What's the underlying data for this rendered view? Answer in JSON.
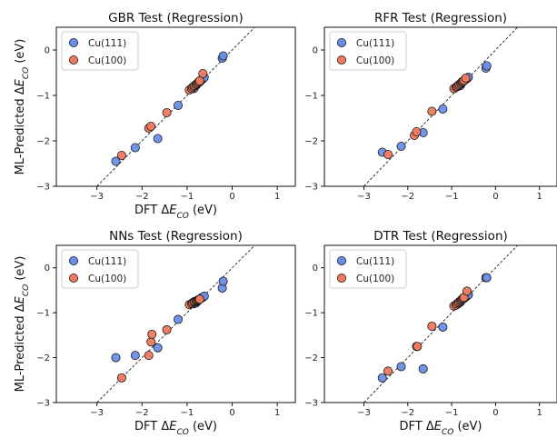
{
  "chart_data": [
    {
      "type": "scatter",
      "title": "GBR Test (Regression)",
      "xlabel": "DFT ΔE_CO (eV)",
      "ylabel": "ML-Predicted ΔE_CO (eV)",
      "xlim": [
        -3.9,
        1.4
      ],
      "ylim": [
        -3.0,
        0.5
      ],
      "xticks": [
        -3,
        -2,
        -1,
        0,
        1
      ],
      "yticks": [
        -3,
        -2,
        -1,
        0
      ],
      "legend": "top-left",
      "parity_line": true,
      "series": [
        {
          "name": "Cu(111)",
          "color": "#6a8ee8",
          "points": [
            [
              -2.58,
              -2.45
            ],
            [
              -2.15,
              -2.15
            ],
            [
              -1.65,
              -1.95
            ],
            [
              -1.2,
              -1.22
            ],
            [
              -0.85,
              -0.85
            ],
            [
              -0.8,
              -0.78
            ],
            [
              -0.78,
              -0.75
            ],
            [
              -0.75,
              -0.72
            ],
            [
              -0.72,
              -0.7
            ],
            [
              -0.7,
              -0.68
            ],
            [
              -0.68,
              -0.66
            ],
            [
              -0.66,
              -0.64
            ],
            [
              -0.64,
              -0.62
            ],
            [
              -0.62,
              -0.6
            ],
            [
              -0.22,
              -0.18
            ],
            [
              -0.2,
              -0.13
            ]
          ]
        },
        {
          "name": "Cu(100)",
          "color": "#f07a5e",
          "points": [
            [
              -2.45,
              -2.32
            ],
            [
              -1.85,
              -1.72
            ],
            [
              -1.8,
              -1.68
            ],
            [
              -1.45,
              -1.38
            ],
            [
              -0.95,
              -0.88
            ],
            [
              -0.9,
              -0.85
            ],
            [
              -0.88,
              -0.82
            ],
            [
              -0.85,
              -0.8
            ],
            [
              -0.83,
              -0.78
            ],
            [
              -0.8,
              -0.76
            ],
            [
              -0.78,
              -0.74
            ],
            [
              -0.76,
              -0.72
            ],
            [
              -0.74,
              -0.7
            ],
            [
              -0.72,
              -0.68
            ],
            [
              -0.65,
              -0.52
            ]
          ]
        }
      ]
    },
    {
      "type": "scatter",
      "title": "RFR Test (Regression)",
      "xlabel": "",
      "ylabel": "",
      "xlim": [
        -3.9,
        1.4
      ],
      "ylim": [
        -3.0,
        0.5
      ],
      "xticks": [
        -3,
        -2,
        -1,
        0,
        1
      ],
      "yticks": [
        -3,
        -2,
        -1,
        0
      ],
      "legend": "top-left",
      "parity_line": true,
      "series": [
        {
          "name": "Cu(111)",
          "color": "#6a8ee8",
          "points": [
            [
              -2.58,
              -2.25
            ],
            [
              -2.15,
              -2.12
            ],
            [
              -1.65,
              -1.82
            ],
            [
              -1.2,
              -1.3
            ],
            [
              -0.85,
              -0.8
            ],
            [
              -0.8,
              -0.78
            ],
            [
              -0.78,
              -0.74
            ],
            [
              -0.75,
              -0.7
            ],
            [
              -0.72,
              -0.68
            ],
            [
              -0.7,
              -0.66
            ],
            [
              -0.68,
              -0.65
            ],
            [
              -0.66,
              -0.63
            ],
            [
              -0.64,
              -0.62
            ],
            [
              -0.62,
              -0.6
            ],
            [
              -0.22,
              -0.4
            ],
            [
              -0.2,
              -0.35
            ]
          ]
        },
        {
          "name": "Cu(100)",
          "color": "#f07a5e",
          "points": [
            [
              -2.45,
              -2.3
            ],
            [
              -1.85,
              -1.88
            ],
            [
              -1.8,
              -1.8
            ],
            [
              -1.45,
              -1.35
            ],
            [
              -0.95,
              -0.85
            ],
            [
              -0.9,
              -0.82
            ],
            [
              -0.88,
              -0.8
            ],
            [
              -0.85,
              -0.78
            ],
            [
              -0.83,
              -0.76
            ],
            [
              -0.8,
              -0.74
            ],
            [
              -0.78,
              -0.72
            ],
            [
              -0.76,
              -0.7
            ],
            [
              -0.74,
              -0.69
            ],
            [
              -0.72,
              -0.67
            ],
            [
              -0.68,
              -0.62
            ]
          ]
        }
      ]
    },
    {
      "type": "scatter",
      "title": "NNs Test (Regression)",
      "xlabel": "DFT ΔE_CO (eV)",
      "ylabel": "ML-Predicted ΔE_CO (eV)",
      "xlim": [
        -3.9,
        1.4
      ],
      "ylim": [
        -3.0,
        0.5
      ],
      "xticks": [
        -3,
        -2,
        -1,
        0,
        1
      ],
      "yticks": [
        -3,
        -2,
        -1,
        0
      ],
      "legend": "top-left",
      "parity_line": true,
      "series": [
        {
          "name": "Cu(111)",
          "color": "#6a8ee8",
          "points": [
            [
              -2.58,
              -2.0
            ],
            [
              -2.15,
              -1.95
            ],
            [
              -1.65,
              -1.78
            ],
            [
              -1.2,
              -1.15
            ],
            [
              -0.85,
              -0.8
            ],
            [
              -0.8,
              -0.78
            ],
            [
              -0.78,
              -0.75
            ],
            [
              -0.75,
              -0.72
            ],
            [
              -0.72,
              -0.7
            ],
            [
              -0.7,
              -0.68
            ],
            [
              -0.68,
              -0.67
            ],
            [
              -0.66,
              -0.66
            ],
            [
              -0.64,
              -0.65
            ],
            [
              -0.62,
              -0.63
            ],
            [
              -0.22,
              -0.45
            ],
            [
              -0.2,
              -0.3
            ]
          ]
        },
        {
          "name": "Cu(100)",
          "color": "#f07a5e",
          "points": [
            [
              -2.45,
              -2.45
            ],
            [
              -1.85,
              -1.95
            ],
            [
              -1.8,
              -1.65
            ],
            [
              -1.78,
              -1.48
            ],
            [
              -1.45,
              -1.38
            ],
            [
              -0.95,
              -0.82
            ],
            [
              -0.9,
              -0.8
            ],
            [
              -0.88,
              -0.78
            ],
            [
              -0.85,
              -0.76
            ],
            [
              -0.83,
              -0.75
            ],
            [
              -0.8,
              -0.74
            ],
            [
              -0.78,
              -0.73
            ],
            [
              -0.76,
              -0.72
            ],
            [
              -0.74,
              -0.71
            ],
            [
              -0.72,
              -0.7
            ]
          ]
        }
      ]
    },
    {
      "type": "scatter",
      "title": "DTR Test (Regression)",
      "xlabel": "DFT ΔE_CO (eV)",
      "ylabel": "",
      "xlim": [
        -3.9,
        1.4
      ],
      "ylim": [
        -3.0,
        0.5
      ],
      "xticks": [
        -3,
        -2,
        -1,
        0,
        1
      ],
      "yticks": [
        -3,
        -2,
        -1,
        0
      ],
      "legend": "top-left",
      "parity_line": true,
      "series": [
        {
          "name": "Cu(111)",
          "color": "#6a8ee8",
          "points": [
            [
              -2.58,
              -2.45
            ],
            [
              -2.15,
              -2.2
            ],
            [
              -1.65,
              -2.25
            ],
            [
              -1.2,
              -1.32
            ],
            [
              -0.85,
              -0.8
            ],
            [
              -0.8,
              -0.76
            ],
            [
              -0.78,
              -0.72
            ],
            [
              -0.75,
              -0.7
            ],
            [
              -0.72,
              -0.68
            ],
            [
              -0.7,
              -0.66
            ],
            [
              -0.68,
              -0.65
            ],
            [
              -0.66,
              -0.63
            ],
            [
              -0.64,
              -0.62
            ],
            [
              -0.62,
              -0.6
            ],
            [
              -0.22,
              -0.22
            ],
            [
              -0.2,
              -0.22
            ]
          ]
        },
        {
          "name": "Cu(100)",
          "color": "#f07a5e",
          "points": [
            [
              -2.45,
              -2.3
            ],
            [
              -1.8,
              -1.75
            ],
            [
              -1.78,
              -1.75
            ],
            [
              -1.45,
              -1.3
            ],
            [
              -0.95,
              -0.85
            ],
            [
              -0.9,
              -0.83
            ],
            [
              -0.88,
              -0.8
            ],
            [
              -0.85,
              -0.78
            ],
            [
              -0.83,
              -0.76
            ],
            [
              -0.8,
              -0.74
            ],
            [
              -0.78,
              -0.72
            ],
            [
              -0.76,
              -0.7
            ],
            [
              -0.74,
              -0.68
            ],
            [
              -0.72,
              -0.66
            ],
            [
              -0.65,
              -0.52
            ]
          ]
        }
      ]
    }
  ]
}
